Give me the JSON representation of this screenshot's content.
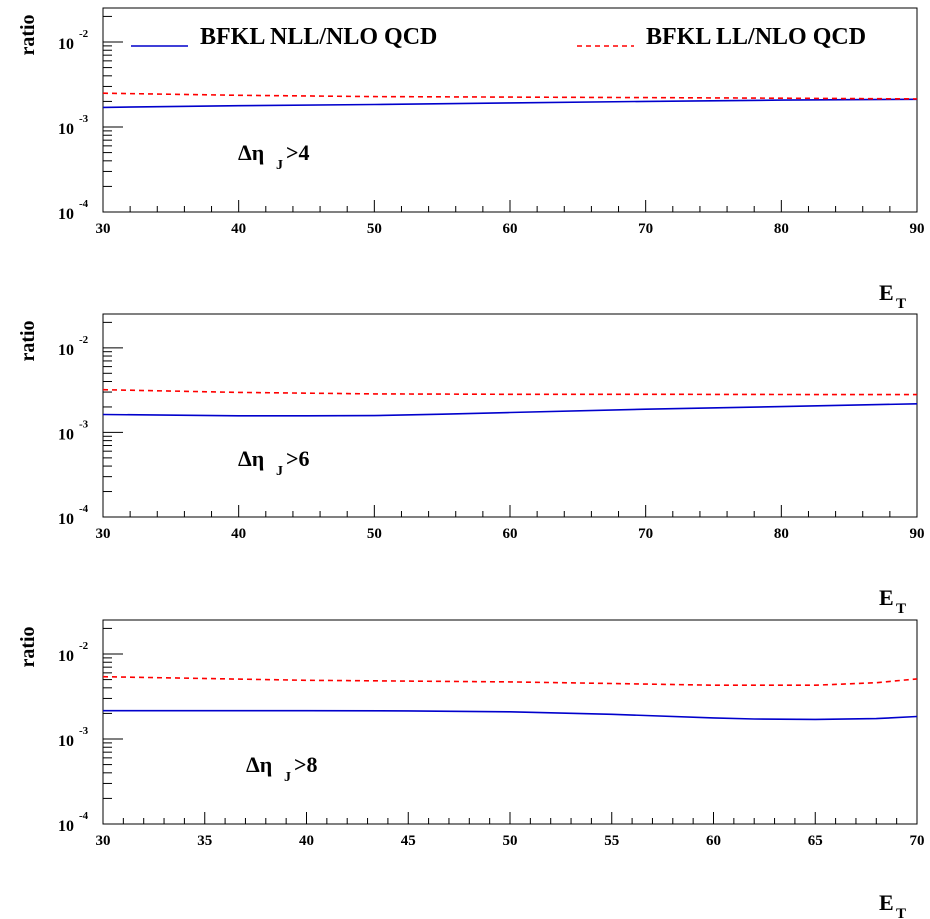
{
  "legend": {
    "position": "top",
    "entries": [
      {
        "label": "BFKL NLL/NLO QCD",
        "color": "#0000cc",
        "style": "solid"
      },
      {
        "label": "BFKL LL/NLO QCD",
        "color": "#ff0000",
        "style": "dashed"
      }
    ]
  },
  "chart_data": [
    {
      "type": "line",
      "annotation": "Δη",
      "annotation_sub": "J",
      "annotation_cut": ">4",
      "xlabel": "E",
      "xlabel_sub": "T",
      "ylabel": "ratio",
      "xlim": [
        30,
        90
      ],
      "xticks": [
        30,
        40,
        50,
        60,
        70,
        80,
        90
      ],
      "yscale": "log",
      "ylim_log10": [
        -4,
        -1.6
      ],
      "yticks_log10": [
        -4,
        -3,
        -2
      ],
      "grid": false,
      "series": [
        {
          "name": "BFKL NLL/NLO QCD",
          "x": [
            30,
            40,
            50,
            60,
            70,
            80,
            90
          ],
          "y": [
            0.0017,
            0.00178,
            0.00184,
            0.00192,
            0.002,
            0.00207,
            0.00212
          ]
        },
        {
          "name": "BFKL LL/NLO QCD",
          "x": [
            30,
            40,
            50,
            60,
            70,
            80,
            90
          ],
          "y": [
            0.0025,
            0.00236,
            0.00228,
            0.00225,
            0.00222,
            0.00218,
            0.00214
          ]
        }
      ]
    },
    {
      "type": "line",
      "annotation": "Δη",
      "annotation_sub": "J",
      "annotation_cut": ">6",
      "xlabel": "E",
      "xlabel_sub": "T",
      "ylabel": "ratio",
      "xlim": [
        30,
        90
      ],
      "xticks": [
        30,
        40,
        50,
        60,
        70,
        80,
        90
      ],
      "yscale": "log",
      "ylim_log10": [
        -4,
        -1.6
      ],
      "yticks_log10": [
        -4,
        -3,
        -2
      ],
      "grid": false,
      "series": [
        {
          "name": "BFKL NLL/NLO QCD",
          "x": [
            30,
            40,
            45,
            50,
            55,
            60,
            70,
            80,
            90
          ],
          "y": [
            0.00163,
            0.00157,
            0.00157,
            0.00158,
            0.00164,
            0.00172,
            0.00188,
            0.00202,
            0.00218
          ]
        },
        {
          "name": "BFKL LL/NLO QCD",
          "x": [
            30,
            40,
            50,
            60,
            70,
            80,
            90
          ],
          "y": [
            0.0032,
            0.00297,
            0.00285,
            0.00282,
            0.00282,
            0.00281,
            0.0028
          ]
        }
      ]
    },
    {
      "type": "line",
      "annotation": "Δη",
      "annotation_sub": "J",
      "annotation_cut": ">8",
      "xlabel": "E",
      "xlabel_sub": "T",
      "ylabel": "ratio",
      "xlim": [
        30,
        70
      ],
      "xticks": [
        30,
        35,
        40,
        45,
        50,
        55,
        60,
        65,
        70
      ],
      "yscale": "log",
      "ylim_log10": [
        -4,
        -1.6
      ],
      "yticks_log10": [
        -4,
        -3,
        -2
      ],
      "grid": false,
      "series": [
        {
          "name": "BFKL NLL/NLO QCD",
          "x": [
            30,
            35,
            40,
            45,
            50,
            55,
            60,
            62,
            65,
            68,
            70
          ],
          "y": [
            0.00215,
            0.00215,
            0.00215,
            0.00214,
            0.00209,
            0.00195,
            0.00177,
            0.00172,
            0.0017,
            0.00174,
            0.00184
          ]
        },
        {
          "name": "BFKL LL/NLO QCD",
          "x": [
            30,
            40,
            50,
            55,
            60,
            65,
            68,
            70
          ],
          "y": [
            0.0054,
            0.0049,
            0.0047,
            0.0045,
            0.0043,
            0.0043,
            0.0046,
            0.0051
          ]
        }
      ]
    }
  ]
}
